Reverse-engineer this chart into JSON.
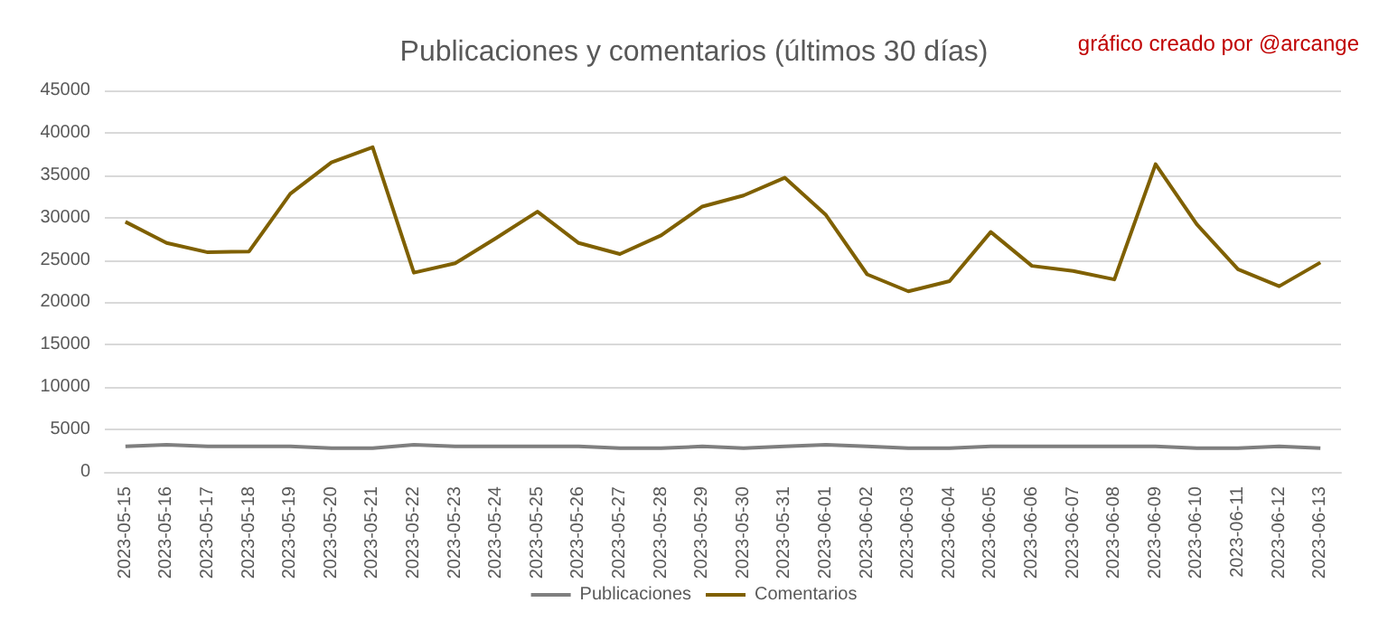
{
  "chart_data": {
    "type": "line",
    "title": "Publicaciones y comentarios (últimos 30 días)",
    "annotations": [
      "gráfico creado por @arcange"
    ],
    "categories": [
      "2023-05-15",
      "2023-05-16",
      "2023-05-17",
      "2023-05-18",
      "2023-05-19",
      "2023-05-20",
      "2023-05-21",
      "2023-05-22",
      "2023-05-23",
      "2023-05-24",
      "2023-05-25",
      "2023-05-26",
      "2023-05-27",
      "2023-05-28",
      "2023-05-29",
      "2023-05-30",
      "2023-05-31",
      "2023-06-01",
      "2023-06-02",
      "2023-06-03",
      "2023-06-04",
      "2023-06-05",
      "2023-06-06",
      "2023-06-07",
      "2023-06-08",
      "2023-06-09",
      "2023-06-10",
      "2023-06-11",
      "2023-06-12",
      "2023-06-13"
    ],
    "series": [
      {
        "name": "Publicaciones",
        "color": "#7f7f7f",
        "values": [
          3000,
          3200,
          3000,
          3000,
          3000,
          2800,
          2800,
          3200,
          3000,
          3000,
          3000,
          3000,
          2800,
          2800,
          3000,
          2800,
          3000,
          3200,
          3000,
          2800,
          2800,
          3000,
          3000,
          3000,
          3000,
          3000,
          2800,
          2800,
          3000,
          2800
        ]
      },
      {
        "name": "Comentarios",
        "color": "#7f6000",
        "values": [
          29500,
          27000,
          25900,
          26000,
          32800,
          36500,
          38300,
          23500,
          24600,
          27600,
          30700,
          27000,
          25700,
          27900,
          31300,
          32600,
          34700,
          30300,
          23300,
          21300,
          22500,
          28300,
          24300,
          23700,
          22700,
          36300,
          29200,
          23900,
          21900,
          24700
        ]
      }
    ],
    "ylim": [
      0,
      45000
    ],
    "yticks": [
      0,
      5000,
      10000,
      15000,
      20000,
      25000,
      30000,
      35000,
      40000,
      45000
    ],
    "grid": "y",
    "legend": "bottom",
    "marker": "none",
    "line_style": "solid"
  }
}
